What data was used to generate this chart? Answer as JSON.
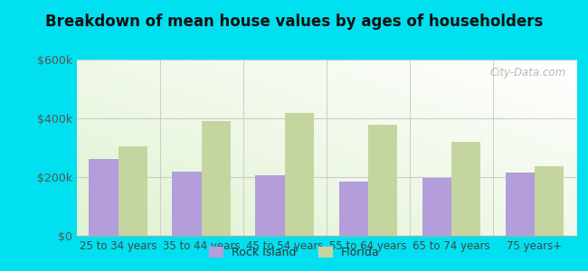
{
  "title": "Breakdown of mean house values by ages of householders",
  "categories": [
    "25 to 34 years",
    "35 to 44 years",
    "45 to 54 years",
    "55 to 64 years",
    "65 to 74 years",
    "75 years+"
  ],
  "rock_island": [
    262000,
    220000,
    205000,
    185000,
    198000,
    215000
  ],
  "florida": [
    305000,
    390000,
    420000,
    380000,
    320000,
    237000
  ],
  "rock_island_color": "#b39ddb",
  "florida_color": "#c5d5a0",
  "background_outer": "#00e0f0",
  "ylim": [
    0,
    600000
  ],
  "yticks": [
    0,
    200000,
    400000,
    600000
  ],
  "ytick_labels": [
    "$0",
    "$200k",
    "$400k",
    "$600k"
  ],
  "legend_rock_island": "Rock Island",
  "legend_florida": "Florida",
  "bar_width": 0.35,
  "watermark": "City-Data.com"
}
